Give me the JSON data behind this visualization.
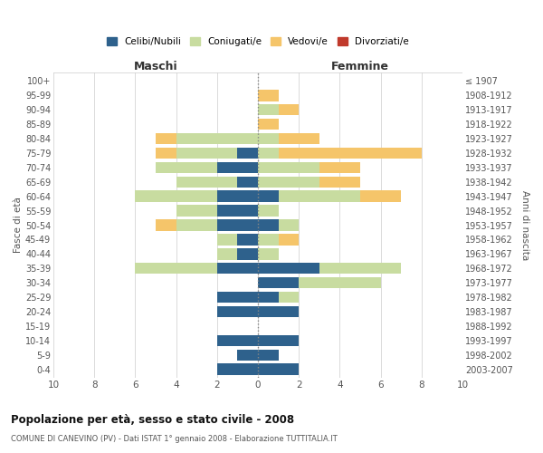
{
  "age_groups": [
    "0-4",
    "5-9",
    "10-14",
    "15-19",
    "20-24",
    "25-29",
    "30-34",
    "35-39",
    "40-44",
    "45-49",
    "50-54",
    "55-59",
    "60-64",
    "65-69",
    "70-74",
    "75-79",
    "80-84",
    "85-89",
    "90-94",
    "95-99",
    "100+"
  ],
  "birth_years": [
    "2003-2007",
    "1998-2002",
    "1993-1997",
    "1988-1992",
    "1983-1987",
    "1978-1982",
    "1973-1977",
    "1968-1972",
    "1963-1967",
    "1958-1962",
    "1953-1957",
    "1948-1952",
    "1943-1947",
    "1938-1942",
    "1933-1937",
    "1928-1932",
    "1923-1927",
    "1918-1922",
    "1913-1917",
    "1908-1912",
    "≤ 1907"
  ],
  "maschi": {
    "celibi": [
      2,
      1,
      2,
      0,
      2,
      2,
      0,
      2,
      1,
      1,
      2,
      2,
      2,
      1,
      2,
      1,
      0,
      0,
      0,
      0,
      0
    ],
    "coniugati": [
      0,
      0,
      0,
      0,
      0,
      0,
      0,
      4,
      1,
      1,
      2,
      2,
      4,
      3,
      3,
      3,
      4,
      0,
      0,
      0,
      0
    ],
    "vedovi": [
      0,
      0,
      0,
      0,
      0,
      0,
      0,
      0,
      0,
      0,
      1,
      0,
      0,
      0,
      0,
      1,
      1,
      0,
      0,
      0,
      0
    ],
    "divorziati": [
      0,
      0,
      0,
      0,
      0,
      0,
      0,
      0,
      0,
      0,
      0,
      0,
      0,
      0,
      0,
      0,
      0,
      0,
      0,
      0,
      0
    ]
  },
  "femmine": {
    "celibi": [
      2,
      1,
      2,
      0,
      2,
      1,
      2,
      3,
      0,
      0,
      1,
      0,
      1,
      0,
      0,
      0,
      0,
      0,
      0,
      0,
      0
    ],
    "coniugati": [
      0,
      0,
      0,
      0,
      0,
      1,
      4,
      4,
      1,
      1,
      1,
      1,
      4,
      3,
      3,
      1,
      1,
      0,
      1,
      0,
      0
    ],
    "vedovi": [
      0,
      0,
      0,
      0,
      0,
      0,
      0,
      0,
      0,
      1,
      0,
      0,
      2,
      2,
      2,
      7,
      2,
      1,
      1,
      1,
      0
    ],
    "divorziati": [
      0,
      0,
      0,
      0,
      0,
      0,
      0,
      0,
      0,
      0,
      0,
      0,
      0,
      0,
      0,
      0,
      0,
      0,
      0,
      0,
      0
    ]
  },
  "colors": {
    "celibi": "#2E618C",
    "coniugati": "#C8DCA0",
    "vedovi": "#F5C56A",
    "divorziati": "#C0392B"
  },
  "legend_labels": [
    "Celibi/Nubili",
    "Coniugati/e",
    "Vedovi/e",
    "Divorziati/e"
  ],
  "title": "Popolazione per età, sesso e stato civile - 2008",
  "subtitle": "COMUNE DI CANEVINO (PV) - Dati ISTAT 1° gennaio 2008 - Elaborazione TUTTITALIA.IT",
  "xlabel_left": "Maschi",
  "xlabel_right": "Femmine",
  "ylabel_left": "Fasce di età",
  "ylabel_right": "Anni di nascita",
  "xlim": 10,
  "background_color": "#ffffff",
  "grid_color": "#cccccc"
}
